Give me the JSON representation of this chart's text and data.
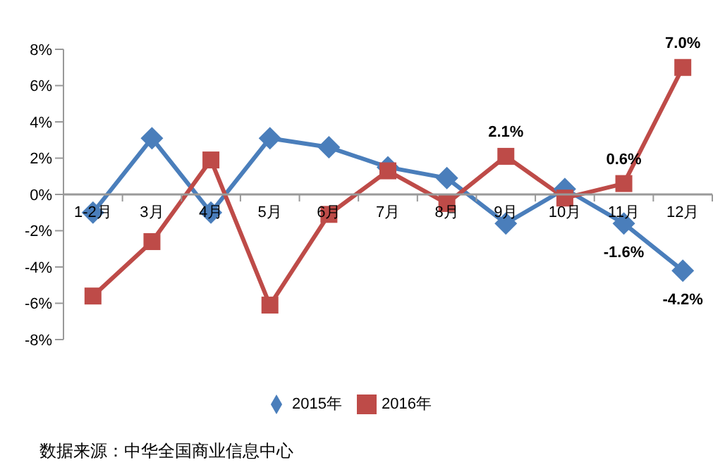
{
  "chart_data": {
    "type": "line",
    "categories": [
      "1-2月",
      "3月",
      "4月",
      "5月",
      "6月",
      "7月",
      "8月",
      "9月",
      "10月",
      "11月",
      "12月"
    ],
    "series": [
      {
        "name": "2015年",
        "color": "#4a7ebb",
        "marker": "diamond",
        "values": [
          -1.0,
          3.1,
          -1.0,
          3.1,
          2.6,
          1.5,
          0.9,
          -1.6,
          0.3,
          -1.6,
          -4.2
        ],
        "value_labels": [
          null,
          null,
          null,
          null,
          null,
          null,
          null,
          null,
          null,
          "-1.6%",
          "-4.2%"
        ]
      },
      {
        "name": "2016年",
        "color": "#be4b48",
        "marker": "square",
        "values": [
          -5.6,
          -2.6,
          1.9,
          -6.1,
          -1.1,
          1.3,
          -0.5,
          2.1,
          -0.2,
          0.6,
          7.0
        ],
        "value_labels": [
          null,
          null,
          null,
          null,
          null,
          null,
          null,
          "2.1%",
          null,
          "0.6%",
          "7.0%"
        ]
      }
    ],
    "ylim": [
      -8,
      8
    ],
    "yticks": [
      {
        "value": -8,
        "label": "-8%"
      },
      {
        "value": -6,
        "label": "-6%"
      },
      {
        "value": -4,
        "label": "-4%"
      },
      {
        "value": -2,
        "label": "-2%"
      },
      {
        "value": 0,
        "label": "0%"
      },
      {
        "value": 2,
        "label": "2%"
      },
      {
        "value": 4,
        "label": "4%"
      },
      {
        "value": 6,
        "label": "6%"
      },
      {
        "value": 8,
        "label": "8%"
      }
    ],
    "grid": false,
    "legend": "bottom",
    "line_style": "solid",
    "annotations": [
      "数据来源：中华全国商业信息中心"
    ]
  }
}
